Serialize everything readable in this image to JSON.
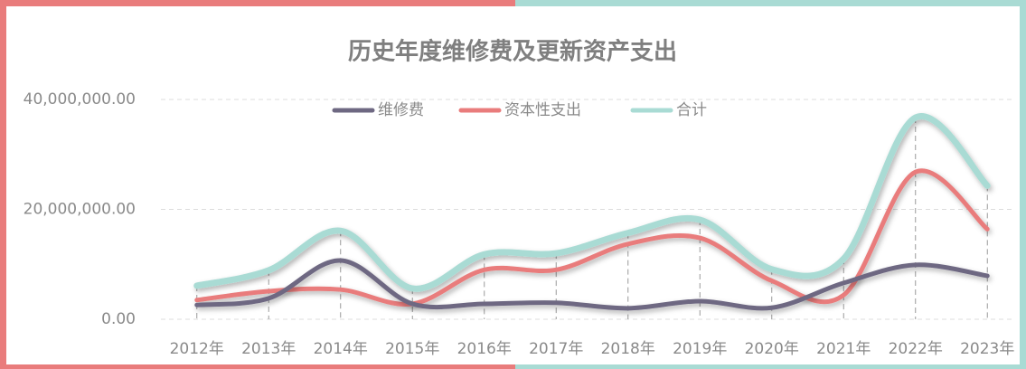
{
  "chart_data": {
    "type": "line",
    "title": "历史年度维修费及更新资产支出",
    "categories": [
      "2012年",
      "2013年",
      "2014年",
      "2015年",
      "2016年",
      "2017年",
      "2018年",
      "2019年",
      "2020年",
      "2021年",
      "2022年",
      "2023年"
    ],
    "series": [
      {
        "name": "维修费",
        "color": "#6e6882",
        "values": [
          2600000,
          3800000,
          10700000,
          2800000,
          2800000,
          3000000,
          2000000,
          3300000,
          2100000,
          6600000,
          9900000,
          7900000
        ]
      },
      {
        "name": "资本性支出",
        "color": "#e97c7c",
        "values": [
          3500000,
          5100000,
          5400000,
          2800000,
          9000000,
          9000000,
          13700000,
          14800000,
          7000000,
          4400000,
          26800000,
          16400000
        ]
      },
      {
        "name": "合计",
        "color": "#a9dbd4",
        "values": [
          6100000,
          8900000,
          16100000,
          5600000,
          11800000,
          12000000,
          15700000,
          18100000,
          9100000,
          11000000,
          36700000,
          24300000
        ]
      }
    ],
    "ylim": [
      0,
      40000000
    ],
    "yticks": [
      {
        "value": 0,
        "label": "0.00"
      },
      {
        "value": 20000000,
        "label": "20,000,000.00"
      },
      {
        "value": 40000000,
        "label": "40,000,000.00"
      }
    ],
    "grid": true,
    "legend": "top"
  }
}
